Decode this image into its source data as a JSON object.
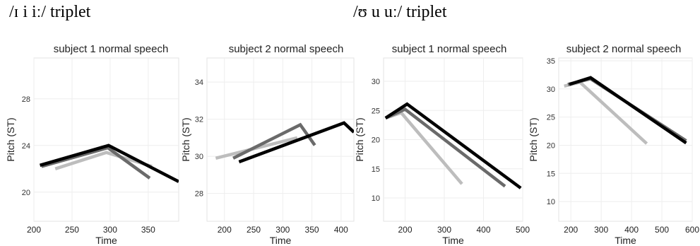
{
  "group_titles": [
    "/ɪ i iː/ triplet",
    "/ʊ u uː/ triplet"
  ],
  "chart_data": [
    {
      "type": "line",
      "title": "subject 1 normal speech",
      "xlabel": "Time",
      "ylabel": "Pitch (ST)",
      "xlim": [
        200,
        390
      ],
      "ylim": [
        17.5,
        31.5
      ],
      "xticks": [
        200,
        250,
        300,
        350
      ],
      "yticks": [
        20,
        24,
        28
      ],
      "series": [
        {
          "color": "#bdbdbd",
          "x": [
            228,
            295,
            355
          ],
          "y": [
            22.0,
            23.4,
            22.2
          ]
        },
        {
          "color": "#6a6a6a",
          "x": [
            210,
            297,
            352
          ],
          "y": [
            22.2,
            23.8,
            21.2
          ]
        },
        {
          "color": "#000000",
          "x": [
            208,
            298,
            390
          ],
          "y": [
            22.3,
            24.0,
            20.9
          ]
        }
      ]
    },
    {
      "type": "line",
      "title": "subject 2 normal speech",
      "xlabel": "Time",
      "ylabel": "Pitch (ST)",
      "xlim": [
        170,
        422
      ],
      "ylim": [
        26.5,
        35.3
      ],
      "xticks": [
        200,
        250,
        300,
        350,
        400
      ],
      "yticks": [
        28,
        30,
        32,
        34
      ],
      "series": [
        {
          "color": "#bdbdbd",
          "x": [
            185,
            325
          ],
          "y": [
            29.9,
            31.0
          ]
        },
        {
          "color": "#6a6a6a",
          "x": [
            215,
            330,
            355
          ],
          "y": [
            29.9,
            31.7,
            30.6
          ]
        },
        {
          "color": "#000000",
          "x": [
            225,
            405,
            422
          ],
          "y": [
            29.7,
            31.8,
            31.3
          ]
        }
      ]
    },
    {
      "type": "line",
      "title": "subject 1 normal speech",
      "xlabel": "Time",
      "ylabel": "Pitch (ST)",
      "xlim": [
        145,
        500
      ],
      "ylim": [
        6,
        34
      ],
      "xticks": [
        200,
        300,
        400,
        500
      ],
      "yticks": [
        10,
        15,
        20,
        25,
        30
      ],
      "series": [
        {
          "color": "#bdbdbd",
          "x": [
            150,
            190,
            345
          ],
          "y": [
            23.7,
            24.6,
            12.4
          ]
        },
        {
          "color": "#6a6a6a",
          "x": [
            150,
            200,
            455
          ],
          "y": [
            23.7,
            25.2,
            12.0
          ]
        },
        {
          "color": "#000000",
          "x": [
            150,
            205,
            495
          ],
          "y": [
            23.7,
            26.1,
            11.7
          ]
        }
      ]
    },
    {
      "type": "line",
      "title": "subject 2 normal speech",
      "xlabel": "Time",
      "ylabel": "Pitch (ST)",
      "xlim": [
        160,
        600
      ],
      "ylim": [
        6.5,
        35.5
      ],
      "xticks": [
        200,
        300,
        400,
        500,
        600
      ],
      "yticks": [
        10,
        15,
        20,
        25,
        30,
        35
      ],
      "series": [
        {
          "color": "#bdbdbd",
          "x": [
            178,
            230,
            450
          ],
          "y": [
            30.5,
            31.2,
            20.3
          ]
        },
        {
          "color": "#6a6a6a",
          "x": [
            190,
            265,
            580
          ],
          "y": [
            30.8,
            31.8,
            20.8
          ]
        },
        {
          "color": "#000000",
          "x": [
            195,
            265,
            580
          ],
          "y": [
            30.8,
            32.0,
            20.4
          ]
        }
      ]
    }
  ]
}
